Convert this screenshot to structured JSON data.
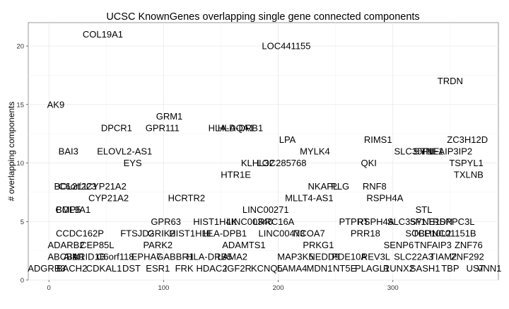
{
  "chart_data": {
    "type": "scatter",
    "title": "UCSC KnownGenes overlapping single gene connected components",
    "xlabel": "",
    "ylabel": "# overlapping components",
    "xlim": [
      -18,
      392
    ],
    "ylim": [
      0,
      22
    ],
    "x_ticks": [
      0,
      100,
      200,
      300
    ],
    "y_ticks": [
      0,
      5,
      10,
      15,
      20
    ],
    "grid": true,
    "label_color": "#000000",
    "grid_color": "#ebebeb",
    "labels": [
      {
        "text": "COL19A1",
        "x": 47,
        "y": 21
      },
      {
        "text": "LOC441155",
        "x": 207,
        "y": 20
      },
      {
        "text": "TRDN",
        "x": 350,
        "y": 17
      },
      {
        "text": "AK9",
        "x": 6,
        "y": 15
      },
      {
        "text": "GRM1",
        "x": 105,
        "y": 14
      },
      {
        "text": "DPCR1",
        "x": 59,
        "y": 13
      },
      {
        "text": "GPR111",
        "x": 99,
        "y": 13
      },
      {
        "text": "HLA-DQA1",
        "x": 159,
        "y": 13
      },
      {
        "text": "HLA-DRB1",
        "x": 167,
        "y": 13
      },
      {
        "text": "LPA",
        "x": 208,
        "y": 12
      },
      {
        "text": "RIMS1",
        "x": 287,
        "y": 12
      },
      {
        "text": "ZC3H12D",
        "x": 365,
        "y": 12
      },
      {
        "text": "BAI3",
        "x": 17,
        "y": 11
      },
      {
        "text": "ELOVL2-AS1",
        "x": 66,
        "y": 11
      },
      {
        "text": "MYLK4",
        "x": 232,
        "y": 11
      },
      {
        "text": "SLC35F1",
        "x": 318,
        "y": 11
      },
      {
        "text": "SYNE1",
        "x": 331,
        "y": 11
      },
      {
        "text": "TNFAIP3IP2",
        "x": 347,
        "y": 11
      },
      {
        "text": "EYS",
        "x": 73,
        "y": 10
      },
      {
        "text": "KLHL32",
        "x": 182,
        "y": 10
      },
      {
        "text": "LOC285768",
        "x": 203,
        "y": 10
      },
      {
        "text": "QKI",
        "x": 279,
        "y": 10
      },
      {
        "text": "TSPYL1",
        "x": 364,
        "y": 10
      },
      {
        "text": "HTR1E",
        "x": 163,
        "y": 9
      },
      {
        "text": "TXLNB",
        "x": 366,
        "y": 9
      },
      {
        "text": "BCL2L1",
        "x": 19,
        "y": 8
      },
      {
        "text": "C6orf223",
        "x": 25,
        "y": 8
      },
      {
        "text": "CYP21A2",
        "x": 50,
        "y": 8
      },
      {
        "text": "NKAPL",
        "x": 239,
        "y": 8
      },
      {
        "text": "PLG",
        "x": 254,
        "y": 8
      },
      {
        "text": "RNF8",
        "x": 284,
        "y": 8
      },
      {
        "text": "CYP21A2",
        "x": 52,
        "y": 7
      },
      {
        "text": "HCRTR2",
        "x": 120,
        "y": 7
      },
      {
        "text": "MLLT4-AS1",
        "x": 227,
        "y": 7
      },
      {
        "text": "RSPH4A",
        "x": 293,
        "y": 7
      },
      {
        "text": "BMP5",
        "x": 17,
        "y": 6
      },
      {
        "text": "COL9A1",
        "x": 21,
        "y": 6
      },
      {
        "text": "LINC00271",
        "x": 189,
        "y": 6
      },
      {
        "text": "STL",
        "x": 327,
        "y": 6
      },
      {
        "text": "GPR63",
        "x": 102,
        "y": 5
      },
      {
        "text": "HIST1H4K",
        "x": 145,
        "y": 5
      },
      {
        "text": "LINC00340",
        "x": 175,
        "y": 5
      },
      {
        "text": "LRRC16A",
        "x": 196,
        "y": 5
      },
      {
        "text": "PTPRT",
        "x": 266,
        "y": 5
      },
      {
        "text": "RSPH4A",
        "x": 285,
        "y": 5
      },
      {
        "text": "SLC35F1",
        "x": 312,
        "y": 5
      },
      {
        "text": "SYNE1",
        "x": 328,
        "y": 5
      },
      {
        "text": "TRDN",
        "x": 341,
        "y": 5
      },
      {
        "text": "SPPC3L",
        "x": 356,
        "y": 5
      },
      {
        "text": "CCDC162P",
        "x": 27,
        "y": 4
      },
      {
        "text": "FTSJD2",
        "x": 77,
        "y": 4
      },
      {
        "text": "GRIK2",
        "x": 98,
        "y": 4
      },
      {
        "text": "HIST1H1E",
        "x": 124,
        "y": 4
      },
      {
        "text": "HLA-DPB1",
        "x": 153,
        "y": 4
      },
      {
        "text": "LINC00473",
        "x": 203,
        "y": 4
      },
      {
        "text": "NCOA7",
        "x": 227,
        "y": 4
      },
      {
        "text": "PRR18",
        "x": 276,
        "y": 4
      },
      {
        "text": "SOBP",
        "x": 322,
        "y": 4
      },
      {
        "text": "TCP10L2",
        "x": 334,
        "y": 4
      },
      {
        "text": "LINC01151B",
        "x": 350,
        "y": 4
      },
      {
        "text": "ADARB2",
        "x": 15,
        "y": 3
      },
      {
        "text": "CEP85L",
        "x": 42,
        "y": 3
      },
      {
        "text": "PARK2",
        "x": 95,
        "y": 3
      },
      {
        "text": "ADAMTS1",
        "x": 170,
        "y": 3
      },
      {
        "text": "PRKG1",
        "x": 235,
        "y": 3
      },
      {
        "text": "SENP6",
        "x": 305,
        "y": 3
      },
      {
        "text": "TNFAIP3",
        "x": 335,
        "y": 3
      },
      {
        "text": "ZNF76",
        "x": 366,
        "y": 3
      },
      {
        "text": "ABCB1",
        "x": 12,
        "y": 2
      },
      {
        "text": "AIM1",
        "x": 22,
        "y": 2
      },
      {
        "text": "ARID1B",
        "x": 35,
        "y": 2
      },
      {
        "text": "C6orf118",
        "x": 58,
        "y": 2
      },
      {
        "text": "EPHA7",
        "x": 85,
        "y": 2
      },
      {
        "text": "GABBR1",
        "x": 110,
        "y": 2
      },
      {
        "text": "HLA-DRB5",
        "x": 140,
        "y": 2
      },
      {
        "text": "LAMA2",
        "x": 160,
        "y": 2
      },
      {
        "text": "MAP3K5",
        "x": 215,
        "y": 2
      },
      {
        "text": "NEDD9",
        "x": 240,
        "y": 2
      },
      {
        "text": "PDE10A",
        "x": 262,
        "y": 2
      },
      {
        "text": "REV3L",
        "x": 285,
        "y": 2
      },
      {
        "text": "SLC22A3",
        "x": 318,
        "y": 2
      },
      {
        "text": "TIAM2",
        "x": 344,
        "y": 2
      },
      {
        "text": "ZNF292",
        "x": 365,
        "y": 2
      },
      {
        "text": "ADGRB3",
        "x": -2,
        "y": 1
      },
      {
        "text": "BACH2",
        "x": 20,
        "y": 1
      },
      {
        "text": "CDKAL1",
        "x": 48,
        "y": 1
      },
      {
        "text": "DST",
        "x": 72,
        "y": 1
      },
      {
        "text": "ESR1",
        "x": 95,
        "y": 1
      },
      {
        "text": "FRK",
        "x": 118,
        "y": 1
      },
      {
        "text": "HDAC2",
        "x": 142,
        "y": 1
      },
      {
        "text": "IGF2R",
        "x": 165,
        "y": 1
      },
      {
        "text": "KCNQ5",
        "x": 190,
        "y": 1
      },
      {
        "text": "LAMA4",
        "x": 212,
        "y": 1
      },
      {
        "text": "MDN1",
        "x": 236,
        "y": 1
      },
      {
        "text": "NT5E",
        "x": 258,
        "y": 1
      },
      {
        "text": "PLAGL1",
        "x": 282,
        "y": 1
      },
      {
        "text": "RUNX2",
        "x": 305,
        "y": 1
      },
      {
        "text": "SASH1",
        "x": 328,
        "y": 1
      },
      {
        "text": "TBP",
        "x": 350,
        "y": 1
      },
      {
        "text": "UST",
        "x": 372,
        "y": 1
      },
      {
        "text": "VNN1",
        "x": 384,
        "y": 1
      }
    ]
  }
}
